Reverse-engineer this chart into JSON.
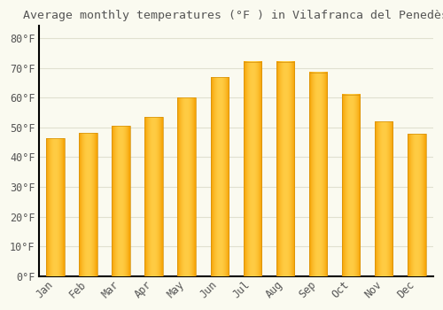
{
  "title": "Average monthly temperatures (°F ) in Vilafranca del Penedès",
  "months": [
    "Jan",
    "Feb",
    "Mar",
    "Apr",
    "May",
    "Jun",
    "Jul",
    "Aug",
    "Sep",
    "Oct",
    "Nov",
    "Dec"
  ],
  "temperatures": [
    46.4,
    48.0,
    50.4,
    53.4,
    59.9,
    66.9,
    72.0,
    72.0,
    68.5,
    61.0,
    52.0,
    47.8
  ],
  "bar_color_center": "#FFCC44",
  "bar_color_edge": "#F5A000",
  "background_color": "#FAFAF0",
  "grid_color": "#E0E0D0",
  "text_color": "#555555",
  "spine_color": "#000000",
  "ylim": [
    0,
    84
  ],
  "yticks": [
    0,
    10,
    20,
    30,
    40,
    50,
    60,
    70,
    80
  ],
  "title_fontsize": 9.5,
  "tick_fontsize": 8.5,
  "bar_width": 0.55
}
